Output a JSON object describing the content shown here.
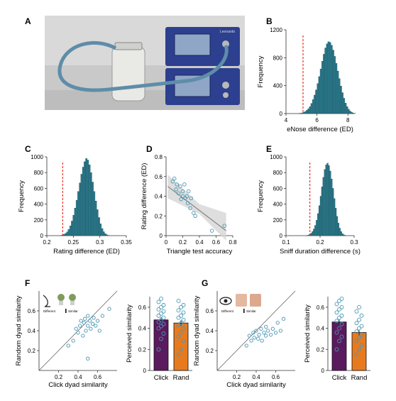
{
  "panel_labels": [
    "A",
    "B",
    "C",
    "D",
    "E",
    "F",
    "G"
  ],
  "colors": {
    "histogram": "#2a7a8c",
    "threshold": "#e8342a",
    "scatter": "#4a97b5",
    "click_bar": "#5b1a5e",
    "rand_bar": "#e87a1e",
    "fit_band": "#d6d6d6"
  },
  "photo": {
    "description_icon": "enose-device-photo",
    "device_label": "Leonardo"
  },
  "chart_data": [
    {
      "panel": "B",
      "type": "bar",
      "xlabel": "eNose difference (ED)",
      "ylabel": "Frequency",
      "xlim": [
        4,
        8.4
      ],
      "ylim": [
        0,
        1200
      ],
      "xticks": [
        4,
        6,
        8
      ],
      "yticks": [
        0,
        400,
        800,
        1200
      ],
      "threshold": 5.1,
      "bin_start": 4.8,
      "bin_width": 0.1,
      "values": [
        2,
        5,
        10,
        18,
        30,
        48,
        70,
        100,
        145,
        200,
        265,
        340,
        430,
        530,
        640,
        750,
        850,
        940,
        1000,
        1030,
        1020,
        980,
        910,
        820,
        720,
        610,
        500,
        395,
        300,
        220,
        150,
        100,
        62,
        35,
        18,
        8,
        3
      ]
    },
    {
      "panel": "C",
      "type": "bar",
      "xlabel": "Rating difference (ED)",
      "ylabel": "Frequency",
      "xlim": [
        0.2,
        0.35
      ],
      "ylim": [
        0,
        1000
      ],
      "xticks": [
        0.2,
        0.25,
        0.3,
        0.35
      ],
      "yticks": [
        0,
        200,
        400,
        600,
        800,
        1000
      ],
      "threshold": 0.23,
      "bin_start": 0.225,
      "bin_width": 0.003,
      "values": [
        3,
        8,
        15,
        28,
        48,
        80,
        125,
        185,
        260,
        350,
        450,
        560,
        670,
        780,
        870,
        940,
        980,
        960,
        900,
        800,
        680,
        560,
        440,
        330,
        230,
        150,
        90,
        50,
        25,
        10,
        4
      ]
    },
    {
      "panel": "D",
      "type": "scatter",
      "xlabel": "Triangle test accuracy",
      "ylabel": "Rating difference (ED)",
      "xlim": [
        0,
        0.8
      ],
      "ylim": [
        0,
        0.8
      ],
      "xticks": [
        0,
        0.2,
        0.4,
        0.6,
        0.8
      ],
      "yticks": [
        0,
        0.2,
        0.4,
        0.6,
        0.8
      ],
      "fit": {
        "x": [
          0.02,
          0.72
        ],
        "y": [
          0.5,
          0.05
        ]
      },
      "points": [
        [
          0.08,
          0.55
        ],
        [
          0.1,
          0.58
        ],
        [
          0.12,
          0.47
        ],
        [
          0.13,
          0.52
        ],
        [
          0.15,
          0.43
        ],
        [
          0.17,
          0.5
        ],
        [
          0.18,
          0.37
        ],
        [
          0.2,
          0.45
        ],
        [
          0.2,
          0.4
        ],
        [
          0.22,
          0.52
        ],
        [
          0.23,
          0.38
        ],
        [
          0.25,
          0.4
        ],
        [
          0.26,
          0.33
        ],
        [
          0.27,
          0.45
        ],
        [
          0.29,
          0.28
        ],
        [
          0.3,
          0.38
        ],
        [
          0.33,
          0.23
        ],
        [
          0.35,
          0.2
        ],
        [
          0.55,
          0.05
        ],
        [
          0.7,
          0.1
        ]
      ]
    },
    {
      "panel": "E",
      "type": "bar",
      "xlabel": "Sniff duration difference (s)",
      "ylabel": "Frequency",
      "xlim": [
        0.1,
        0.3
      ],
      "ylim": [
        0,
        1000
      ],
      "xticks": [
        0.1,
        0.2,
        0.3
      ],
      "yticks": [
        0,
        200,
        400,
        600,
        800,
        1000
      ],
      "threshold": 0.17,
      "bin_start": 0.16,
      "bin_width": 0.004,
      "values": [
        3,
        8,
        16,
        30,
        52,
        85,
        130,
        195,
        280,
        380,
        500,
        620,
        740,
        840,
        900,
        920,
        890,
        820,
        720,
        600,
        470,
        350,
        245,
        160,
        95,
        52,
        25,
        10,
        4
      ]
    },
    {
      "panel": "F-scatter",
      "type": "scatter",
      "xlabel": "Click dyad similarity",
      "ylabel": "Random dyad similarity",
      "xlim": [
        0,
        0.8
      ],
      "ylim": [
        0,
        0.8
      ],
      "xticks": [
        0.2,
        0.4,
        0.6
      ],
      "yticks": [
        0.2,
        0.4,
        0.6
      ],
      "inset_labels": [
        "Different",
        "Similar"
      ],
      "points": [
        [
          0.3,
          0.25
        ],
        [
          0.35,
          0.3
        ],
        [
          0.38,
          0.42
        ],
        [
          0.4,
          0.38
        ],
        [
          0.42,
          0.45
        ],
        [
          0.43,
          0.5
        ],
        [
          0.45,
          0.35
        ],
        [
          0.46,
          0.48
        ],
        [
          0.47,
          0.52
        ],
        [
          0.48,
          0.4
        ],
        [
          0.5,
          0.45
        ],
        [
          0.5,
          0.55
        ],
        [
          0.52,
          0.5
        ],
        [
          0.53,
          0.42
        ],
        [
          0.55,
          0.47
        ],
        [
          0.56,
          0.53
        ],
        [
          0.58,
          0.45
        ],
        [
          0.6,
          0.5
        ],
        [
          0.62,
          0.4
        ],
        [
          0.65,
          0.55
        ],
        [
          0.5,
          0.12
        ],
        [
          0.72,
          0.62
        ]
      ]
    },
    {
      "panel": "F-bars",
      "type": "bar",
      "ylabel": "Perceived similarity",
      "categories": [
        "Click",
        "Rand"
      ],
      "values": [
        0.48,
        0.45
      ],
      "ylim": [
        0,
        0.7
      ],
      "yticks": [
        0,
        0.2,
        0.4,
        0.6
      ],
      "dots": [
        [
          0.2,
          0.3,
          0.35,
          0.4,
          0.42,
          0.44,
          0.46,
          0.48,
          0.5,
          0.52,
          0.54,
          0.56,
          0.58,
          0.6,
          0.62,
          0.65,
          0.68
        ],
        [
          0.15,
          0.2,
          0.28,
          0.32,
          0.36,
          0.4,
          0.43,
          0.45,
          0.48,
          0.5,
          0.52,
          0.55,
          0.57,
          0.6,
          0.62,
          0.66
        ]
      ]
    },
    {
      "panel": "G-scatter",
      "type": "scatter",
      "xlabel": "Click dyad similarity",
      "ylabel": "Random dyad similarity",
      "xlim": [
        0,
        0.8
      ],
      "ylim": [
        0,
        0.8
      ],
      "xticks": [
        0.2,
        0.4,
        0.6
      ],
      "yticks": [
        0.2,
        0.4,
        0.6
      ],
      "inset_labels": [
        "Different",
        "Similar"
      ],
      "points": [
        [
          0.3,
          0.25
        ],
        [
          0.33,
          0.35
        ],
        [
          0.35,
          0.3
        ],
        [
          0.37,
          0.38
        ],
        [
          0.38,
          0.33
        ],
        [
          0.4,
          0.4
        ],
        [
          0.42,
          0.32
        ],
        [
          0.43,
          0.36
        ],
        [
          0.45,
          0.42
        ],
        [
          0.46,
          0.3
        ],
        [
          0.48,
          0.38
        ],
        [
          0.5,
          0.35
        ],
        [
          0.5,
          0.44
        ],
        [
          0.52,
          0.4
        ],
        [
          0.55,
          0.36
        ],
        [
          0.57,
          0.42
        ],
        [
          0.6,
          0.38
        ],
        [
          0.62,
          0.48
        ],
        [
          0.65,
          0.4
        ],
        [
          0.68,
          0.52
        ]
      ]
    },
    {
      "panel": "G-bars",
      "type": "bar",
      "ylabel": "Perceived similarity",
      "categories": [
        "Click",
        "Rand"
      ],
      "values": [
        0.46,
        0.36
      ],
      "ylim": [
        0,
        0.7
      ],
      "yticks": [
        0,
        0.2,
        0.4,
        0.6
      ],
      "dots": [
        [
          0.2,
          0.28,
          0.32,
          0.36,
          0.4,
          0.44,
          0.47,
          0.5,
          0.52,
          0.55,
          0.58,
          0.6,
          0.63,
          0.66,
          0.68
        ],
        [
          0.15,
          0.2,
          0.24,
          0.28,
          0.31,
          0.34,
          0.37,
          0.4,
          0.42,
          0.45,
          0.48,
          0.52,
          0.56,
          0.6
        ]
      ]
    }
  ]
}
